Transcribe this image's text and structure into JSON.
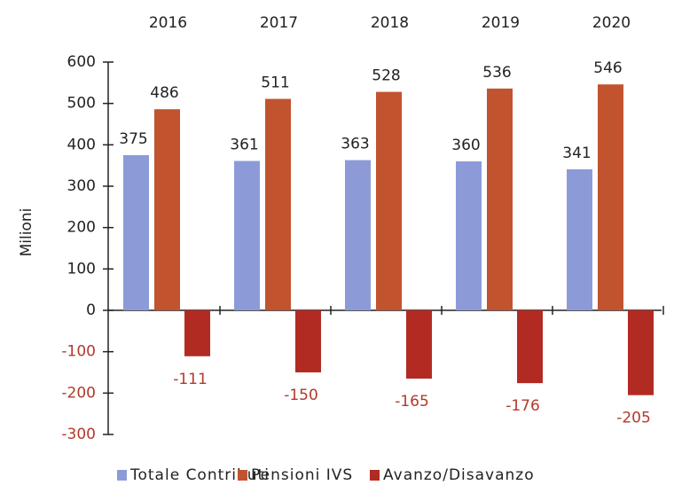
{
  "chart_data": {
    "type": "bar",
    "y_label": "Milioni",
    "categories": [
      "2016",
      "2017",
      "2018",
      "2019",
      "2020"
    ],
    "series": [
      {
        "name": "Totale Contributi",
        "color": "#8c9bd8",
        "values": [
          375,
          361,
          363,
          360,
          341
        ]
      },
      {
        "name": "Pensioni IVS",
        "color": "#c1532f",
        "values": [
          486,
          511,
          528,
          536,
          546
        ]
      },
      {
        "name": "Avanzo/Disavanzo",
        "color": "#b22b22",
        "values": [
          -111,
          -150,
          -165,
          -176,
          -205
        ]
      }
    ],
    "ylim": [
      -300,
      600
    ],
    "yticks": [
      -300,
      -200,
      -100,
      0,
      100,
      200,
      300,
      400,
      500,
      600
    ],
    "grid": false,
    "legend": "bottom"
  }
}
